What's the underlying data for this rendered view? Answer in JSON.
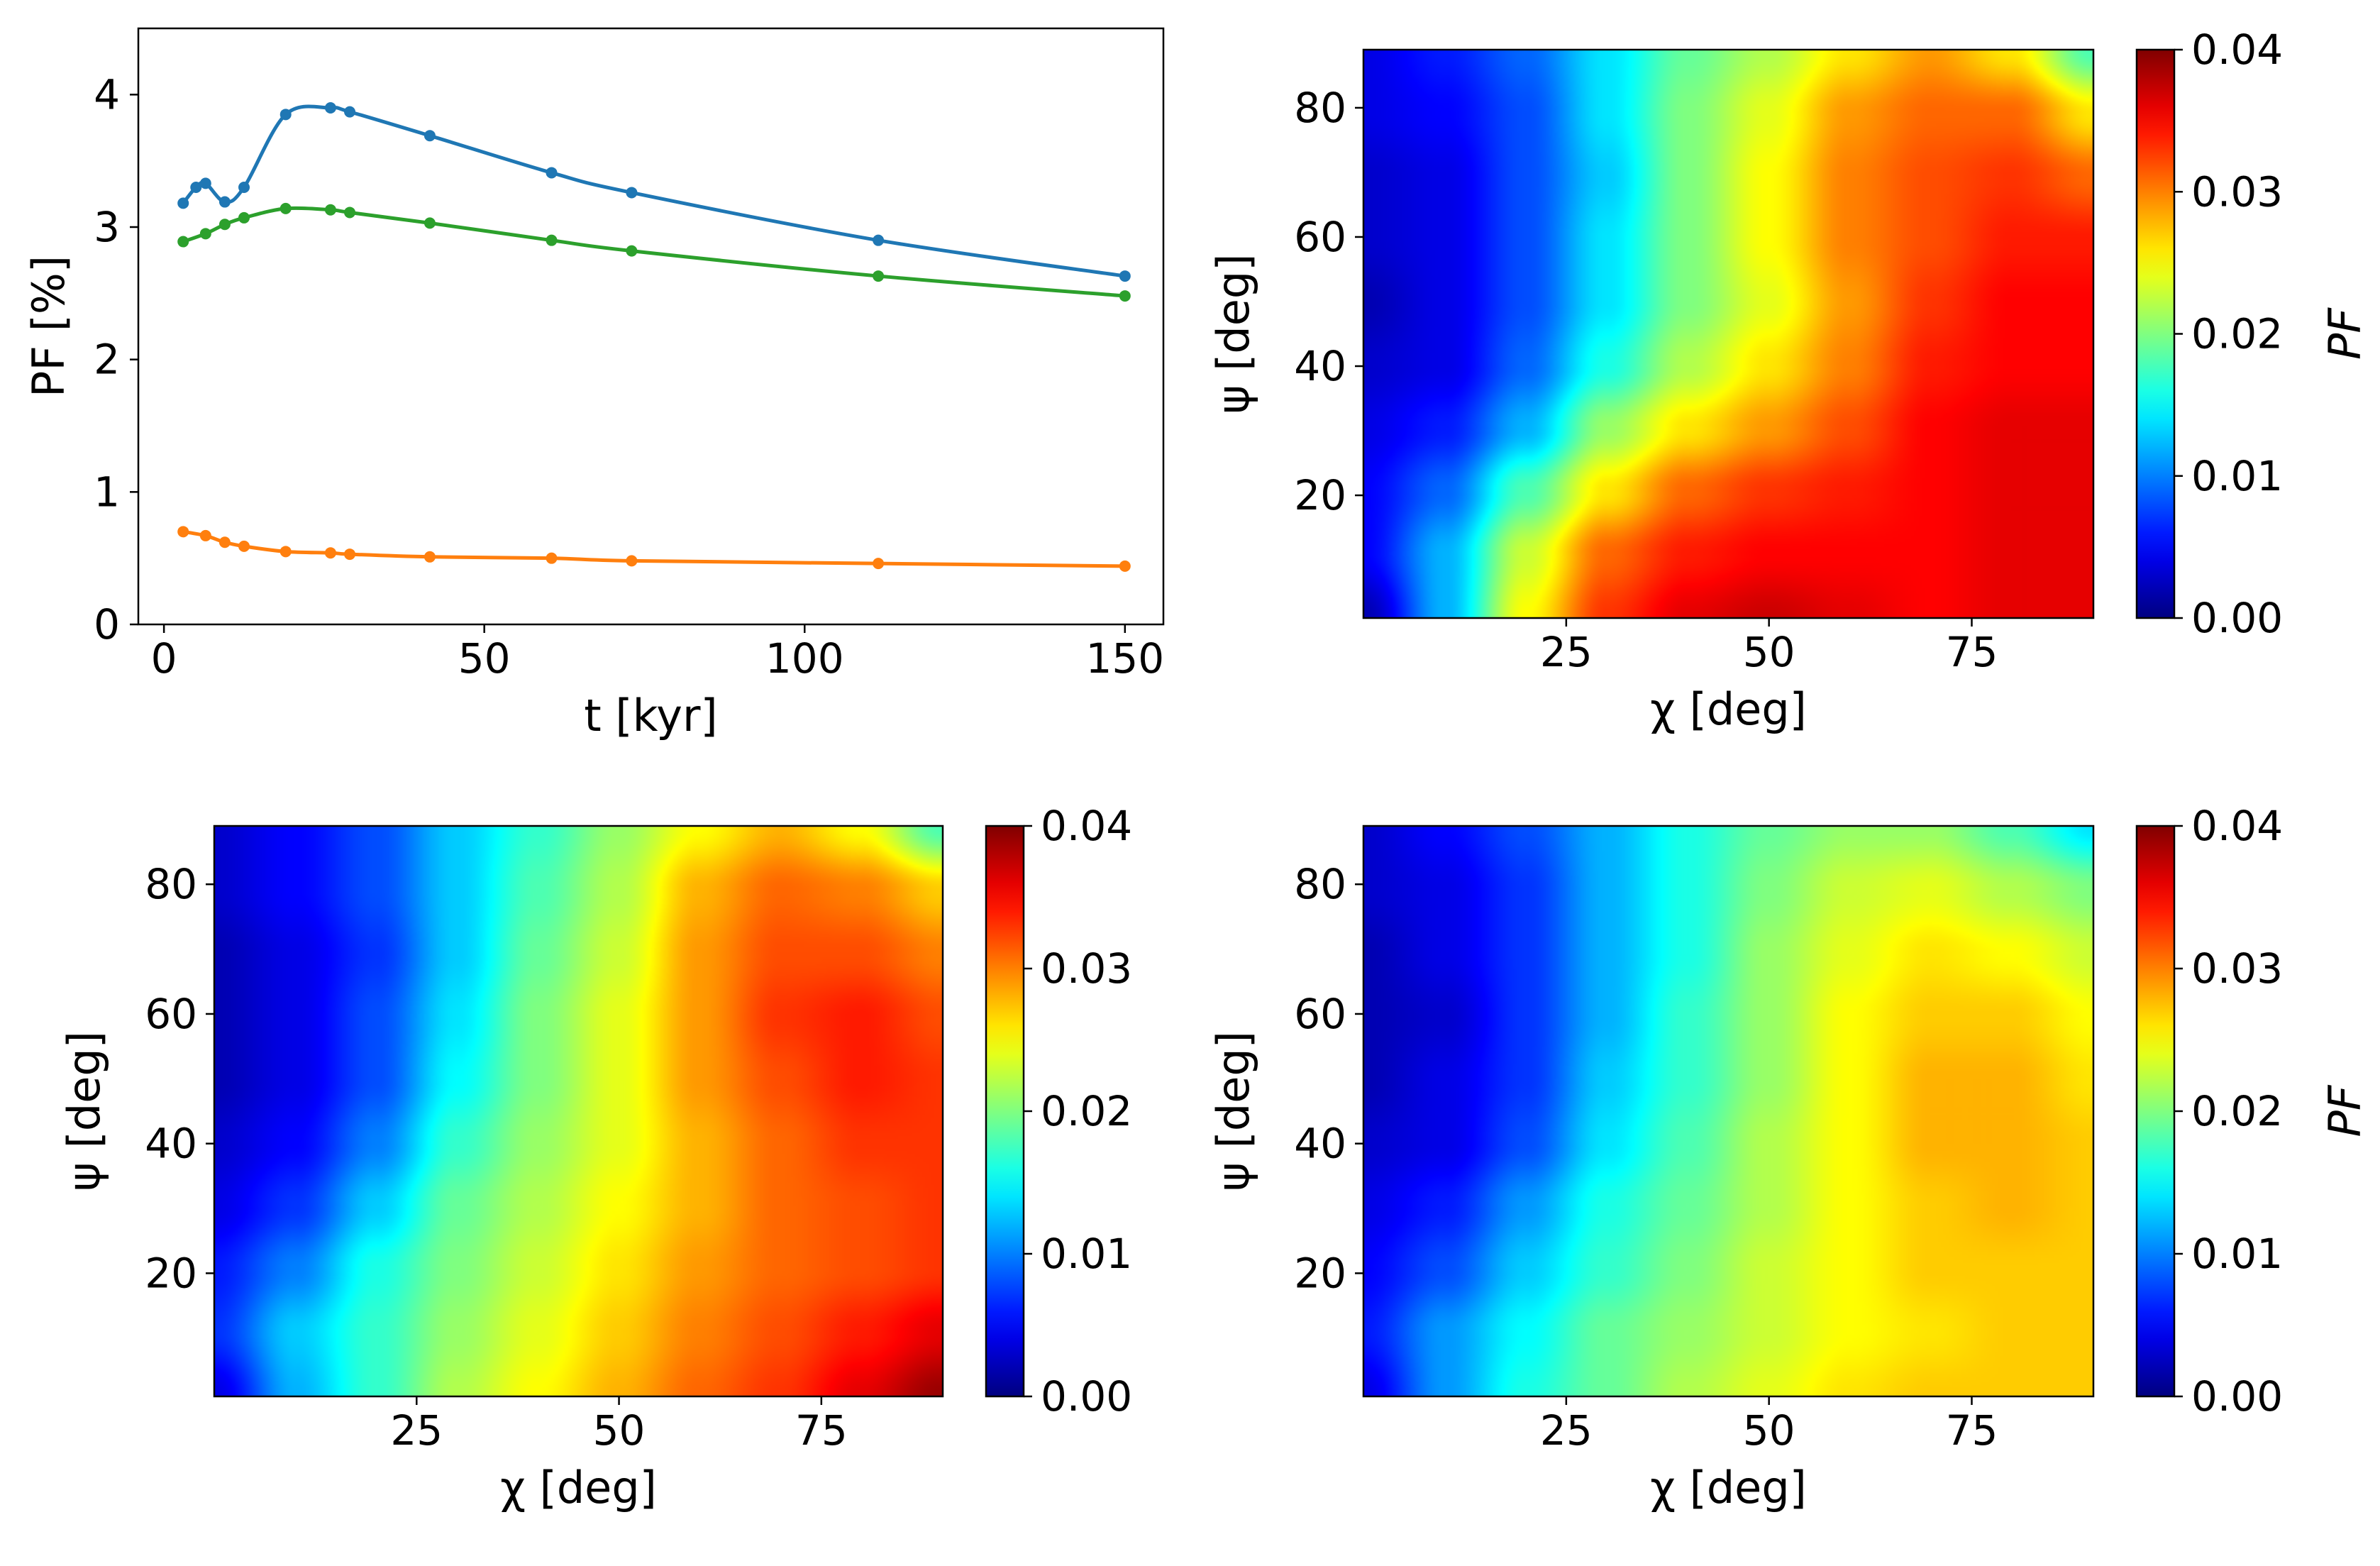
{
  "colors": {
    "blue": "#1f77b4",
    "orange": "#ff7f0e",
    "green": "#2ca02c",
    "axis": "#000000"
  },
  "chart_data": [
    {
      "type": "line",
      "xlabel": "t [kyr]",
      "ylabel": "PF [%]",
      "xlim": [
        -4,
        156
      ],
      "ylim": [
        0,
        4.5
      ],
      "xticks": [
        0,
        50,
        100,
        150
      ],
      "yticks": [
        0,
        1,
        2,
        3,
        4
      ],
      "series": [
        {
          "name": "blue",
          "color": "#1f77b4",
          "points": [
            [
              3,
              3.18
            ],
            [
              5,
              3.3
            ],
            [
              6.5,
              3.33
            ],
            [
              9.5,
              3.19
            ],
            [
              12.5,
              3.3
            ],
            [
              19,
              3.85
            ],
            [
              26,
              3.9
            ],
            [
              29,
              3.87
            ],
            [
              41.5,
              3.69
            ],
            [
              60.5,
              3.41
            ],
            [
              73,
              3.26
            ],
            [
              111.5,
              2.9
            ],
            [
              150,
              2.63
            ]
          ]
        },
        {
          "name": "green",
          "color": "#2ca02c",
          "points": [
            [
              3,
              2.89
            ],
            [
              6.5,
              2.95
            ],
            [
              9.5,
              3.02
            ],
            [
              12.5,
              3.07
            ],
            [
              19,
              3.14
            ],
            [
              26,
              3.13
            ],
            [
              29,
              3.11
            ],
            [
              41.5,
              3.03
            ],
            [
              60.5,
              2.9
            ],
            [
              73,
              2.82
            ],
            [
              111.5,
              2.63
            ],
            [
              150,
              2.48
            ]
          ]
        },
        {
          "name": "orange",
          "color": "#ff7f0e",
          "points": [
            [
              3,
              0.7
            ],
            [
              6.5,
              0.67
            ],
            [
              9.5,
              0.62
            ],
            [
              12.5,
              0.59
            ],
            [
              19,
              0.55
            ],
            [
              26,
              0.54
            ],
            [
              29,
              0.53
            ],
            [
              41.5,
              0.51
            ],
            [
              60.5,
              0.5
            ],
            [
              73,
              0.48
            ],
            [
              111.5,
              0.46
            ],
            [
              150,
              0.44
            ]
          ]
        }
      ]
    },
    {
      "type": "heatmap",
      "xlabel": "χ [deg]",
      "ylabel": "ψ [deg]",
      "xlim": [
        0,
        90
      ],
      "ylim": [
        1,
        89
      ],
      "xticks": [
        25,
        50,
        75
      ],
      "yticks": [
        20,
        40,
        60,
        80
      ],
      "x": [
        0,
        10,
        20,
        30,
        40,
        50,
        60,
        70,
        80,
        90
      ],
      "y": [
        89,
        80,
        70,
        60,
        50,
        40,
        30,
        20,
        10,
        1
      ],
      "z": [
        [
          0.004,
          0.006,
          0.009,
          0.014,
          0.019,
          0.022,
          0.026,
          0.029,
          0.026,
          0.018
        ],
        [
          0.004,
          0.005,
          0.008,
          0.014,
          0.02,
          0.024,
          0.029,
          0.031,
          0.031,
          0.026
        ],
        [
          0.003,
          0.004,
          0.008,
          0.013,
          0.02,
          0.025,
          0.03,
          0.032,
          0.033,
          0.031
        ],
        [
          0.003,
          0.004,
          0.008,
          0.014,
          0.02,
          0.025,
          0.03,
          0.032,
          0.034,
          0.034
        ],
        [
          0.002,
          0.004,
          0.008,
          0.014,
          0.02,
          0.024,
          0.029,
          0.033,
          0.035,
          0.035
        ],
        [
          0.003,
          0.004,
          0.009,
          0.016,
          0.022,
          0.026,
          0.03,
          0.034,
          0.035,
          0.035
        ],
        [
          0.004,
          0.006,
          0.012,
          0.021,
          0.026,
          0.029,
          0.032,
          0.035,
          0.036,
          0.036
        ],
        [
          0.005,
          0.009,
          0.018,
          0.026,
          0.031,
          0.033,
          0.034,
          0.035,
          0.036,
          0.036
        ],
        [
          0.005,
          0.012,
          0.023,
          0.031,
          0.034,
          0.035,
          0.035,
          0.035,
          0.036,
          0.036
        ],
        [
          0.002,
          0.012,
          0.025,
          0.033,
          0.036,
          0.037,
          0.036,
          0.035,
          0.036,
          0.036
        ]
      ],
      "colorbar": {
        "label": "PF",
        "min": 0.0,
        "max": 0.04,
        "ticks": [
          "0.00",
          "0.01",
          "0.02",
          "0.03",
          "0.04"
        ]
      }
    },
    {
      "type": "heatmap",
      "xlabel": "χ [deg]",
      "ylabel": "ψ [deg]",
      "xlim": [
        0,
        90
      ],
      "ylim": [
        1,
        89
      ],
      "xticks": [
        25,
        50,
        75
      ],
      "yticks": [
        20,
        40,
        60,
        80
      ],
      "x": [
        0,
        10,
        20,
        30,
        40,
        50,
        60,
        70,
        80,
        90
      ],
      "y": [
        89,
        80,
        70,
        60,
        50,
        40,
        30,
        20,
        10,
        1
      ],
      "z": [
        [
          0.003,
          0.005,
          0.008,
          0.013,
          0.017,
          0.021,
          0.025,
          0.028,
          0.025,
          0.018
        ],
        [
          0.003,
          0.005,
          0.008,
          0.013,
          0.018,
          0.022,
          0.028,
          0.031,
          0.03,
          0.027
        ],
        [
          0.002,
          0.004,
          0.007,
          0.013,
          0.019,
          0.023,
          0.029,
          0.032,
          0.032,
          0.03
        ],
        [
          0.002,
          0.004,
          0.008,
          0.014,
          0.02,
          0.024,
          0.029,
          0.033,
          0.034,
          0.032
        ],
        [
          0.002,
          0.004,
          0.008,
          0.015,
          0.02,
          0.024,
          0.029,
          0.032,
          0.034,
          0.033
        ],
        [
          0.003,
          0.005,
          0.01,
          0.017,
          0.021,
          0.024,
          0.028,
          0.031,
          0.033,
          0.033
        ],
        [
          0.004,
          0.007,
          0.013,
          0.019,
          0.022,
          0.025,
          0.028,
          0.031,
          0.032,
          0.033
        ],
        [
          0.006,
          0.01,
          0.016,
          0.02,
          0.023,
          0.026,
          0.029,
          0.031,
          0.032,
          0.033
        ],
        [
          0.007,
          0.013,
          0.017,
          0.021,
          0.024,
          0.027,
          0.03,
          0.032,
          0.034,
          0.036
        ],
        [
          0.004,
          0.012,
          0.017,
          0.022,
          0.025,
          0.028,
          0.031,
          0.033,
          0.036,
          0.039
        ]
      ],
      "colorbar": {
        "label": "",
        "min": 0.0,
        "max": 0.04,
        "ticks": [
          "0.00",
          "0.01",
          "0.02",
          "0.03",
          "0.04"
        ]
      }
    },
    {
      "type": "heatmap",
      "xlabel": "χ [deg]",
      "ylabel": "ψ [deg]",
      "xlim": [
        0,
        90
      ],
      "ylim": [
        1,
        89
      ],
      "xticks": [
        25,
        50,
        75
      ],
      "yticks": [
        20,
        40,
        60,
        80
      ],
      "x": [
        0,
        10,
        20,
        30,
        40,
        50,
        60,
        70,
        80,
        90
      ],
      "y": [
        89,
        80,
        70,
        60,
        50,
        40,
        30,
        20,
        10,
        1
      ],
      "z": [
        [
          0.003,
          0.005,
          0.008,
          0.012,
          0.016,
          0.019,
          0.021,
          0.021,
          0.018,
          0.014
        ],
        [
          0.003,
          0.004,
          0.007,
          0.012,
          0.016,
          0.02,
          0.023,
          0.024,
          0.022,
          0.02
        ],
        [
          0.002,
          0.004,
          0.007,
          0.012,
          0.016,
          0.021,
          0.024,
          0.026,
          0.025,
          0.023
        ],
        [
          0.002,
          0.003,
          0.007,
          0.012,
          0.017,
          0.021,
          0.025,
          0.027,
          0.027,
          0.025
        ],
        [
          0.002,
          0.004,
          0.007,
          0.013,
          0.017,
          0.021,
          0.025,
          0.028,
          0.028,
          0.026
        ],
        [
          0.003,
          0.004,
          0.008,
          0.014,
          0.018,
          0.022,
          0.025,
          0.028,
          0.028,
          0.027
        ],
        [
          0.004,
          0.006,
          0.011,
          0.016,
          0.019,
          0.022,
          0.025,
          0.027,
          0.028,
          0.027
        ],
        [
          0.005,
          0.008,
          0.013,
          0.017,
          0.02,
          0.023,
          0.025,
          0.027,
          0.027,
          0.027
        ],
        [
          0.006,
          0.011,
          0.015,
          0.019,
          0.021,
          0.023,
          0.025,
          0.026,
          0.027,
          0.027
        ],
        [
          0.004,
          0.011,
          0.016,
          0.019,
          0.022,
          0.024,
          0.026,
          0.027,
          0.027,
          0.027
        ]
      ],
      "colorbar": {
        "label": "PF",
        "min": 0.0,
        "max": 0.04,
        "ticks": [
          "0.00",
          "0.01",
          "0.02",
          "0.03",
          "0.04"
        ]
      }
    }
  ]
}
